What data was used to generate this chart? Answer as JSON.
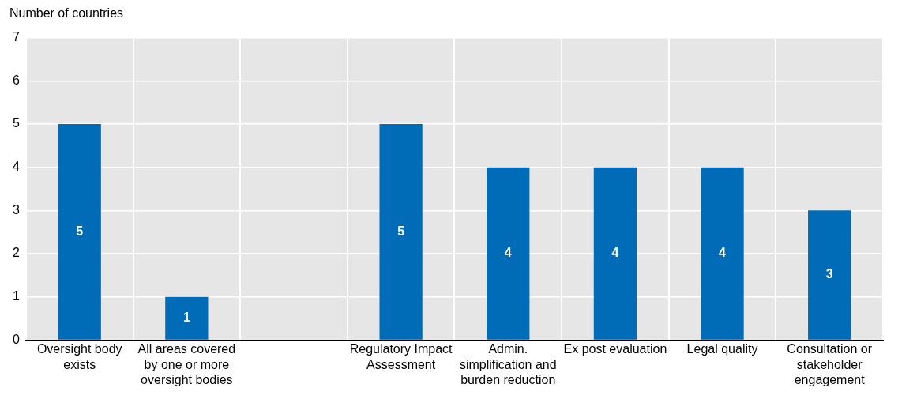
{
  "chart_data": {
    "type": "bar",
    "ylabel": "Number of countries",
    "categories": [
      "Oversight body exists",
      "All areas covered by one or more oversight bodies",
      null,
      "Regulatory Impact Assessment",
      "Admin. simplification and burden reduction",
      "Ex post evaluation",
      "Legal quality",
      "Consultation or stakeholder engagement"
    ],
    "values": [
      5,
      1,
      null,
      5,
      4,
      4,
      4,
      3
    ],
    "color": "#006bb6",
    "ylim": [
      0,
      7
    ],
    "yticks": [
      0,
      1,
      2,
      3,
      4,
      5,
      6,
      7
    ],
    "grid": true,
    "data_labels": true
  }
}
